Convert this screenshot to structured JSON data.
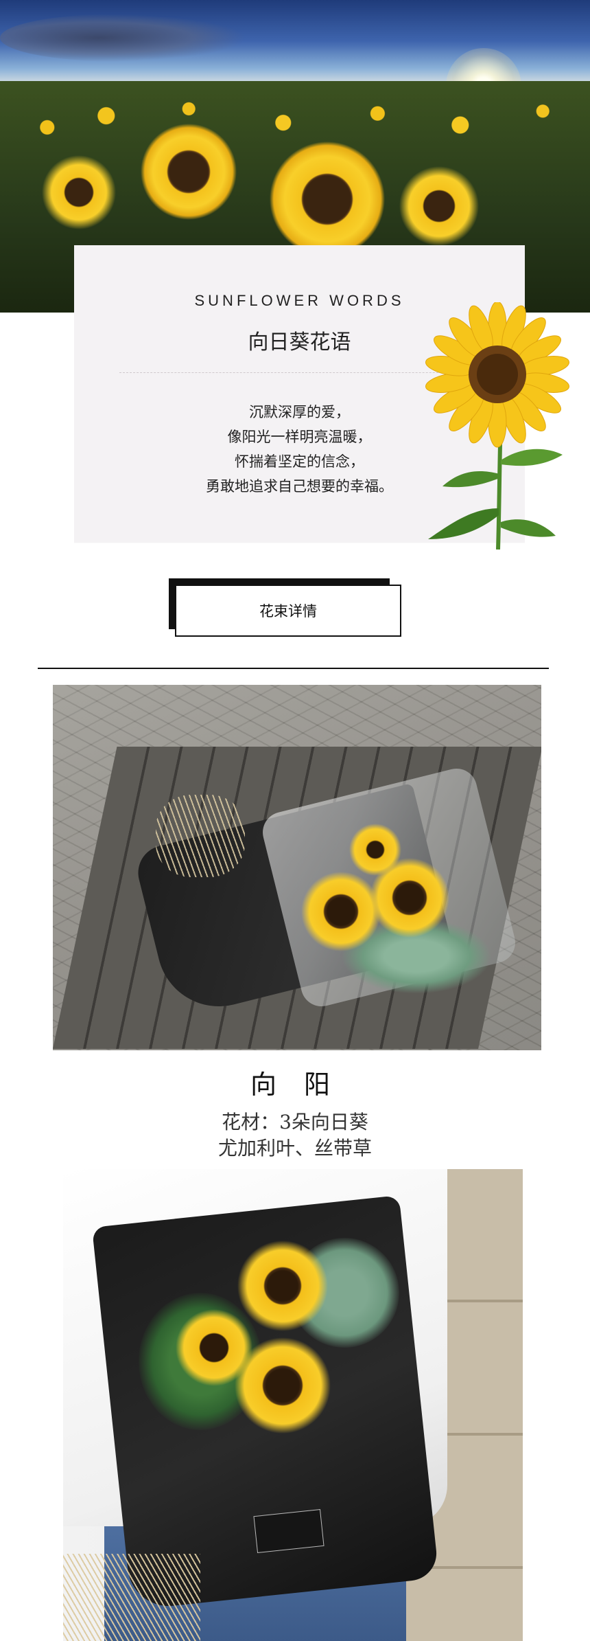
{
  "intro": {
    "english_title": "SUNFLOWER   WORDS",
    "title": "向日葵花语",
    "poem": [
      "沉默深厚的爱，",
      "像阳光一样明亮温暖，",
      "怀揣着坚定的信念，",
      "勇敢地追求自己想要的幸福。"
    ]
  },
  "section_tag": "花束详情",
  "product": {
    "name": "向 阳",
    "materials_line1": "花材：3朵向日葵",
    "materials_line2": "尤加利叶、丝带草"
  },
  "icons": [
    "sunflower-field-photo",
    "sunflower-icon",
    "bouquet-photo"
  ]
}
